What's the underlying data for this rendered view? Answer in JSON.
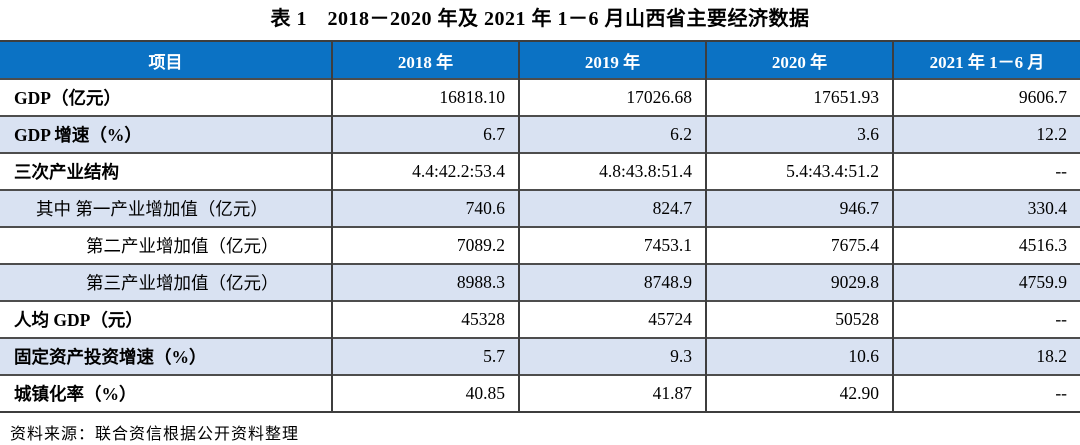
{
  "title": "表 1　2018－2020 年及 2021 年 1－6 月山西省主要经济数据",
  "table": {
    "columns": [
      "项目",
      "2018 年",
      "2019 年",
      "2020 年",
      "2021 年 1－6 月"
    ],
    "rows": [
      {
        "label": "GDP（亿元）",
        "values": [
          "16818.10",
          "17026.68",
          "17651.93",
          "9606.7"
        ],
        "bold": true,
        "indent": 0,
        "shaded": false
      },
      {
        "label": "GDP 增速（%）",
        "values": [
          "6.7",
          "6.2",
          "3.6",
          "12.2"
        ],
        "bold": true,
        "indent": 0,
        "shaded": true
      },
      {
        "label": "三次产业结构",
        "values": [
          "4.4:42.2:53.4",
          "4.8:43.8:51.4",
          "5.4:43.4:51.2",
          "--"
        ],
        "bold": true,
        "indent": 0,
        "shaded": false
      },
      {
        "label": "其中 第一产业增加值（亿元）",
        "values": [
          "740.6",
          "824.7",
          "946.7",
          "330.4"
        ],
        "bold": false,
        "indent": 1,
        "shaded": true
      },
      {
        "label": "第二产业增加值（亿元）",
        "values": [
          "7089.2",
          "7453.1",
          "7675.4",
          "4516.3"
        ],
        "bold": false,
        "indent": 2,
        "shaded": false
      },
      {
        "label": "第三产业增加值（亿元）",
        "values": [
          "8988.3",
          "8748.9",
          "9029.8",
          "4759.9"
        ],
        "bold": false,
        "indent": 2,
        "shaded": true
      },
      {
        "label": "人均 GDP（元）",
        "values": [
          "45328",
          "45724",
          "50528",
          "--"
        ],
        "bold": true,
        "indent": 0,
        "shaded": false
      },
      {
        "label": "固定资产投资增速（%）",
        "values": [
          "5.7",
          "9.3",
          "10.6",
          "18.2"
        ],
        "bold": true,
        "indent": 0,
        "shaded": true
      },
      {
        "label": "城镇化率（%）",
        "values": [
          "40.85",
          "41.87",
          "42.90",
          "--"
        ],
        "bold": true,
        "indent": 0,
        "shaded": false
      }
    ]
  },
  "footer": "资料来源：联合资信根据公开资料整理",
  "colors": {
    "header_bg": "#0b72c4",
    "shaded_row_bg": "#d9e2f2",
    "header_text": "#ffffff",
    "border": "#3e3e3e"
  }
}
